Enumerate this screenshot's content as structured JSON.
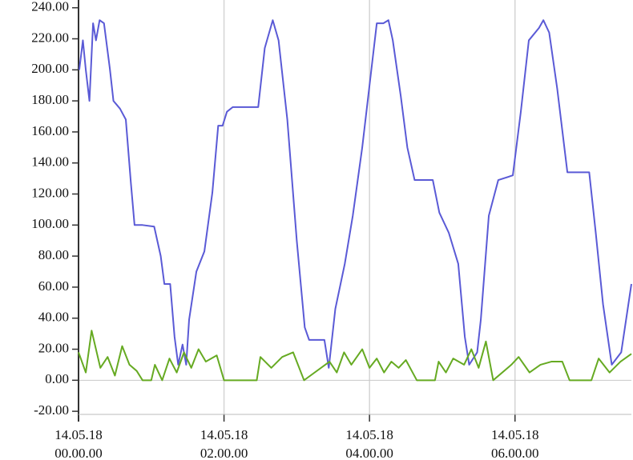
{
  "chart_data": {
    "type": "line",
    "xlim": [
      0,
      7.6
    ],
    "ylim": [
      -22,
      245
    ],
    "xticks": [
      {
        "value": 0,
        "label": "14.05.18\n00.00.00"
      },
      {
        "value": 2,
        "label": "14.05.18\n02.00.00"
      },
      {
        "value": 4,
        "label": "14.05.18\n04.00.00"
      },
      {
        "value": 6,
        "label": "14.05.18\n06.00.00"
      }
    ],
    "yticks": [
      {
        "value": -20,
        "label": "-20.00"
      },
      {
        "value": 0,
        "label": "0.00"
      },
      {
        "value": 20,
        "label": "20.00"
      },
      {
        "value": 40,
        "label": "40.00"
      },
      {
        "value": 60,
        "label": "60.00"
      },
      {
        "value": 80,
        "label": "80.00"
      },
      {
        "value": 100,
        "label": "100.00"
      },
      {
        "value": 120,
        "label": "120.00"
      },
      {
        "value": 140,
        "label": "140.00"
      },
      {
        "value": 160,
        "label": "160.00"
      },
      {
        "value": 180,
        "label": "180.00"
      },
      {
        "value": 200,
        "label": "200.00"
      },
      {
        "value": 220,
        "label": "220.00"
      },
      {
        "value": 240,
        "label": "240.00"
      }
    ],
    "grid": true,
    "series": [
      {
        "color": "#5a5ad6",
        "x": [
          0.01,
          0.06,
          0.1,
          0.15,
          0.2,
          0.24,
          0.29,
          0.35,
          0.43,
          0.48,
          0.57,
          0.65,
          0.72,
          0.77,
          0.88,
          1.04,
          1.13,
          1.18,
          1.26,
          1.32,
          1.37,
          1.43,
          1.48,
          1.52,
          1.62,
          1.73,
          1.84,
          1.92,
          1.98,
          2.04,
          2.12,
          2.47,
          2.56,
          2.67,
          2.75,
          2.87,
          3.0,
          3.11,
          3.17,
          3.38,
          3.44,
          3.53,
          3.66,
          3.77,
          3.9,
          4.01,
          4.1,
          4.19,
          4.26,
          4.32,
          4.43,
          4.52,
          4.62,
          4.87,
          4.96,
          5.09,
          5.22,
          5.31,
          5.37,
          5.48,
          5.53,
          5.64,
          5.77,
          5.97,
          6.08,
          6.19,
          6.33,
          6.39,
          6.47,
          6.58,
          6.72,
          7.02,
          7.11,
          7.21,
          7.33,
          7.46,
          7.6
        ],
        "values": [
          200,
          219,
          200,
          180,
          230,
          219,
          232,
          230,
          201,
          180,
          175,
          168,
          127,
          100,
          100,
          99,
          80,
          62,
          62,
          28,
          10,
          23,
          10,
          39,
          70,
          83,
          121,
          164,
          164,
          173,
          176,
          176,
          214,
          232,
          219,
          168,
          90,
          34,
          26,
          26,
          8,
          46,
          75,
          106,
          150,
          194,
          230,
          230,
          232,
          219,
          183,
          150,
          129,
          129,
          108,
          95,
          75,
          28,
          10,
          18,
          39,
          106,
          129,
          132,
          173,
          219,
          227,
          232,
          224,
          188,
          134,
          134,
          95,
          49,
          10,
          18,
          62
        ]
      },
      {
        "color": "#66aa22",
        "x": [
          0,
          0.1,
          0.18,
          0.3,
          0.4,
          0.5,
          0.6,
          0.7,
          0.8,
          0.88,
          1.0,
          1.05,
          1.15,
          1.25,
          1.35,
          1.45,
          1.55,
          1.65,
          1.75,
          1.9,
          2.0,
          2.45,
          2.5,
          2.65,
          2.8,
          2.95,
          3.1,
          3.45,
          3.55,
          3.65,
          3.75,
          3.9,
          4.0,
          4.1,
          4.2,
          4.3,
          4.4,
          4.5,
          4.65,
          4.9,
          4.95,
          5.05,
          5.15,
          5.3,
          5.4,
          5.5,
          5.6,
          5.7,
          5.95,
          6.05,
          6.2,
          6.35,
          6.5,
          6.65,
          6.75,
          7.05,
          7.15,
          7.3,
          7.45,
          7.6
        ],
        "values": [
          18,
          5,
          32,
          8,
          15,
          3,
          22,
          10,
          6,
          0,
          0,
          10,
          0,
          14,
          5,
          18,
          8,
          20,
          12,
          16,
          0,
          0,
          15,
          8,
          15,
          18,
          0,
          12,
          5,
          18,
          10,
          20,
          8,
          14,
          5,
          12,
          8,
          13,
          0,
          0,
          12,
          5,
          14,
          10,
          20,
          8,
          25,
          0,
          10,
          15,
          5,
          10,
          12,
          12,
          0,
          0,
          14,
          5,
          12,
          17
        ]
      }
    ]
  }
}
